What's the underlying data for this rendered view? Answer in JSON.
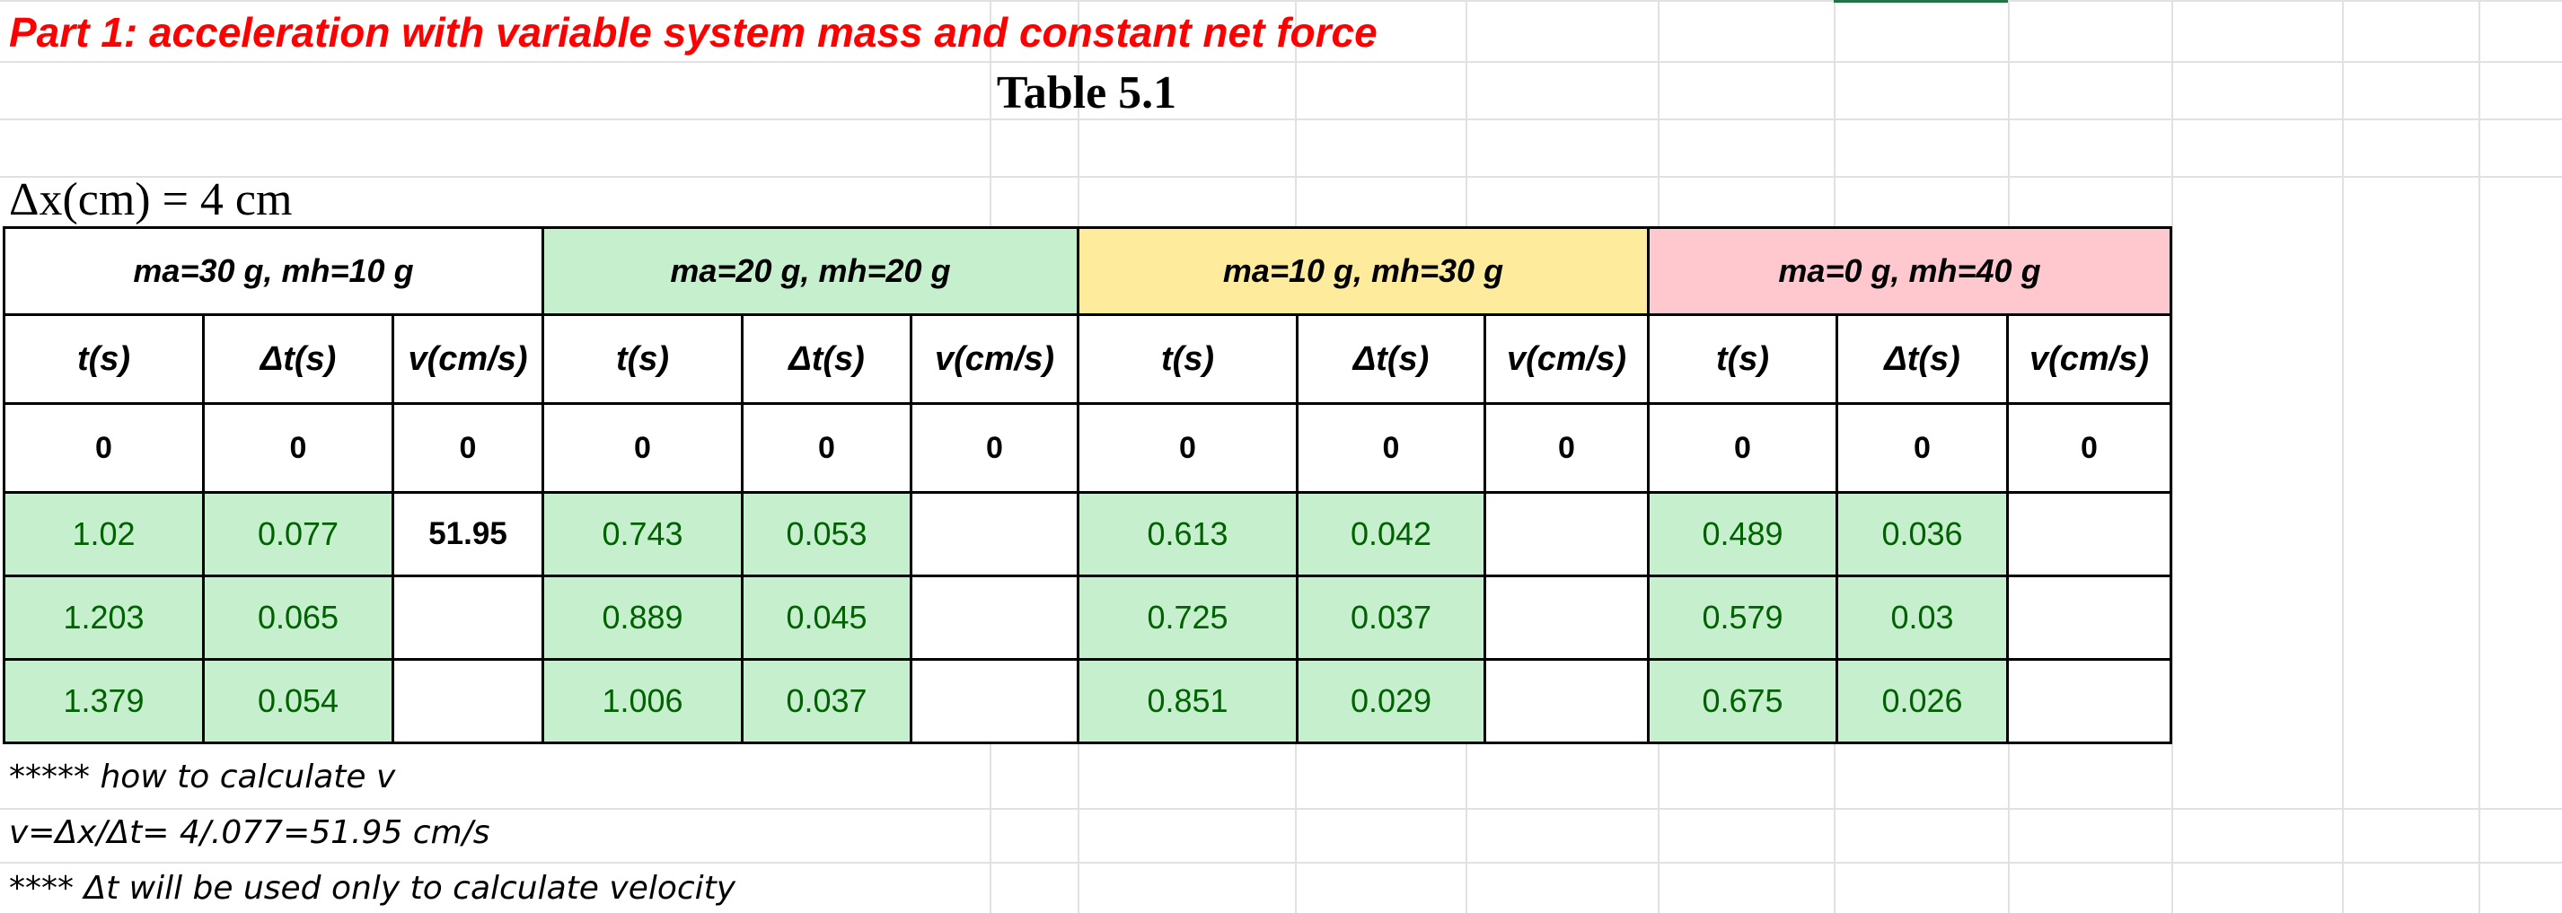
{
  "heading": "Part 1: acceleration with variable system mass and constant net force",
  "table_title": "Table 5.1",
  "dx_label": "Δx(cm) = 4 cm",
  "groups": [
    {
      "label": "ma=30 g, mh=10 g",
      "color": "#ffffff"
    },
    {
      "label": "ma=20 g, mh=20 g",
      "color": "#c6efce"
    },
    {
      "label": "ma=10 g, mh=30 g",
      "color": "#ffeb9c"
    },
    {
      "label": "ma=0 g, mh=40 g",
      "color": "#ffc7ce"
    }
  ],
  "column_headers": {
    "t": "t(s)",
    "dt": "Δt(s)",
    "v": "v(cm/s)"
  },
  "rows": [
    {
      "g1": {
        "t": "0",
        "dt": "0",
        "v": "0"
      },
      "g2": {
        "t": "0",
        "dt": "0",
        "v": "0"
      },
      "g3": {
        "t": "0",
        "dt": "0",
        "v": "0"
      },
      "g4": {
        "t": "0",
        "dt": "0",
        "v": "0"
      }
    },
    {
      "g1": {
        "t": "1.02",
        "dt": "0.077",
        "v": "51.95"
      },
      "g2": {
        "t": "0.743",
        "dt": "0.053",
        "v": ""
      },
      "g3": {
        "t": "0.613",
        "dt": "0.042",
        "v": ""
      },
      "g4": {
        "t": "0.489",
        "dt": "0.036",
        "v": ""
      }
    },
    {
      "g1": {
        "t": "1.203",
        "dt": "0.065",
        "v": ""
      },
      "g2": {
        "t": "0.889",
        "dt": "0.045",
        "v": ""
      },
      "g3": {
        "t": "0.725",
        "dt": "0.037",
        "v": ""
      },
      "g4": {
        "t": "0.579",
        "dt": "0.03",
        "v": ""
      }
    },
    {
      "g1": {
        "t": "1.379",
        "dt": "0.054",
        "v": ""
      },
      "g2": {
        "t": "1.006",
        "dt": "0.037",
        "v": ""
      },
      "g3": {
        "t": "0.851",
        "dt": "0.029",
        "v": ""
      },
      "g4": {
        "t": "0.675",
        "dt": "0.026",
        "v": ""
      }
    }
  ],
  "notes": [
    "***** how to calculate v",
    "v=Δx/Δt= 4/.077=51.95 cm/s",
    "**** Δt will be used only to calculate velocity"
  ]
}
